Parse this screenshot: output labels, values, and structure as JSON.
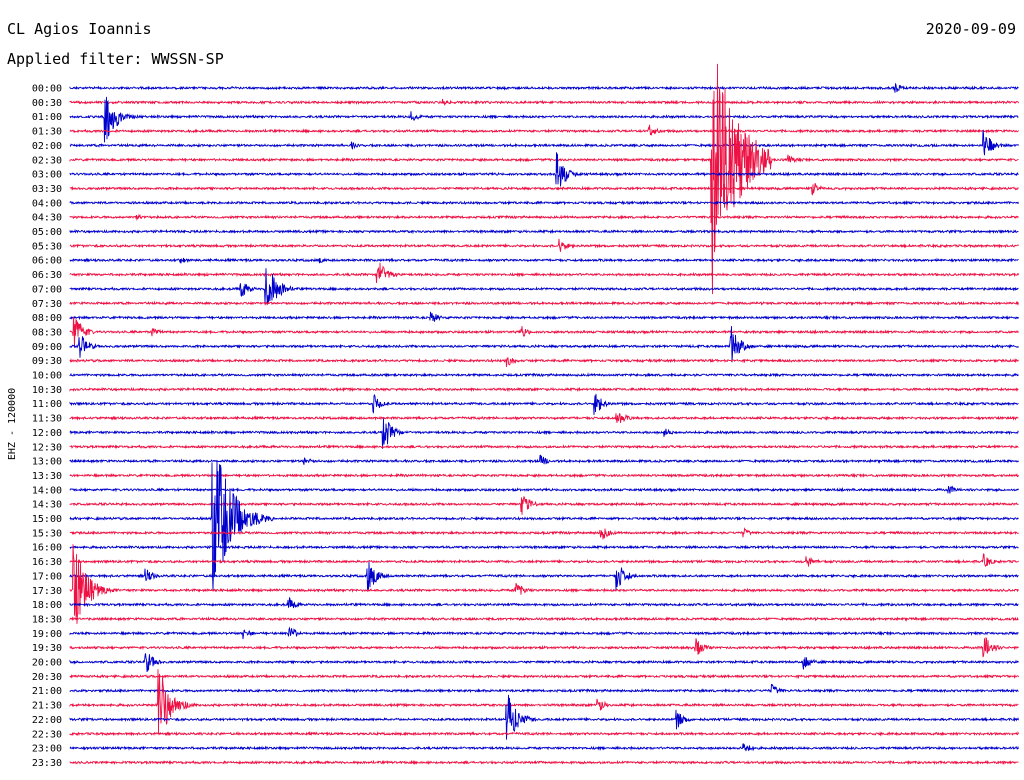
{
  "header": {
    "station": "CL Agios Ioannis",
    "filter": "Applied filter: WWSSN-SP",
    "date": "2020-09-09"
  },
  "chart_data": {
    "type": "line",
    "title": "CL Agios Ioannis",
    "subtitle": "Applied filter: WWSSN-SP",
    "date": "2020-09-09",
    "ylabel": "EHZ - 120000",
    "row_minutes": 30,
    "colors": {
      "even": "#0000cc",
      "odd": "#ee1144"
    },
    "rows": [
      "00:00",
      "00:30",
      "01:00",
      "01:30",
      "02:00",
      "02:30",
      "03:00",
      "03:30",
      "04:00",
      "04:30",
      "05:00",
      "05:30",
      "06:00",
      "06:30",
      "07:00",
      "07:30",
      "08:00",
      "08:30",
      "09:00",
      "09:30",
      "10:00",
      "10:30",
      "11:00",
      "11:30",
      "12:00",
      "12:30",
      "13:00",
      "13:30",
      "14:00",
      "14:30",
      "15:00",
      "15:30",
      "16:00",
      "16:30",
      "17:00",
      "17:30",
      "18:00",
      "18:30",
      "19:00",
      "19:30",
      "20:00",
      "20:30",
      "21:00",
      "21:30",
      "22:00",
      "22:30",
      "23:00",
      "23:30"
    ],
    "events": [
      {
        "row": 0,
        "minute": 26.1,
        "amp": 6
      },
      {
        "row": 1,
        "minute": 11.8,
        "amp": 4
      },
      {
        "row": 2,
        "minute": 1.1,
        "amp": 32
      },
      {
        "row": 2,
        "minute": 10.8,
        "amp": 6
      },
      {
        "row": 3,
        "minute": 18.3,
        "amp": 7
      },
      {
        "row": 4,
        "minute": 8.9,
        "amp": 4
      },
      {
        "row": 4,
        "minute": 28.9,
        "amp": 16
      },
      {
        "row": 5,
        "minute": 20.3,
        "amp": 140
      },
      {
        "row": 5,
        "minute": 22.7,
        "amp": 6
      },
      {
        "row": 6,
        "minute": 15.4,
        "amp": 22
      },
      {
        "row": 7,
        "minute": 23.5,
        "amp": 7
      },
      {
        "row": 9,
        "minute": 2.1,
        "amp": 4
      },
      {
        "row": 11,
        "minute": 15.5,
        "amp": 8
      },
      {
        "row": 12,
        "minute": 3.5,
        "amp": 4
      },
      {
        "row": 12,
        "minute": 7.9,
        "amp": 3
      },
      {
        "row": 13,
        "minute": 9.7,
        "amp": 18
      },
      {
        "row": 14,
        "minute": 6.2,
        "amp": 30
      },
      {
        "row": 14,
        "minute": 5.4,
        "amp": 10
      },
      {
        "row": 16,
        "minute": 11.4,
        "amp": 8
      },
      {
        "row": 17,
        "minute": 0.1,
        "amp": 20
      },
      {
        "row": 17,
        "minute": 2.6,
        "amp": 6
      },
      {
        "row": 17,
        "minute": 14.3,
        "amp": 6
      },
      {
        "row": 18,
        "minute": 0.3,
        "amp": 14
      },
      {
        "row": 18,
        "minute": 20.9,
        "amp": 22
      },
      {
        "row": 19,
        "minute": 13.8,
        "amp": 7
      },
      {
        "row": 22,
        "minute": 9.6,
        "amp": 10
      },
      {
        "row": 22,
        "minute": 16.6,
        "amp": 12
      },
      {
        "row": 23,
        "minute": 17.3,
        "amp": 10
      },
      {
        "row": 24,
        "minute": 9.9,
        "amp": 20
      },
      {
        "row": 24,
        "minute": 18.8,
        "amp": 5
      },
      {
        "row": 26,
        "minute": 7.4,
        "amp": 5
      },
      {
        "row": 26,
        "minute": 14.9,
        "amp": 6
      },
      {
        "row": 28,
        "minute": 27.8,
        "amp": 5
      },
      {
        "row": 29,
        "minute": 14.3,
        "amp": 12
      },
      {
        "row": 30,
        "minute": 4.5,
        "amp": 90
      },
      {
        "row": 31,
        "minute": 16.8,
        "amp": 9
      },
      {
        "row": 31,
        "minute": 21.3,
        "amp": 5
      },
      {
        "row": 33,
        "minute": 23.3,
        "amp": 8
      },
      {
        "row": 33,
        "minute": 28.9,
        "amp": 8
      },
      {
        "row": 34,
        "minute": 9.4,
        "amp": 18
      },
      {
        "row": 34,
        "minute": 17.3,
        "amp": 16
      },
      {
        "row": 34,
        "minute": 2.4,
        "amp": 8
      },
      {
        "row": 35,
        "minute": 0.1,
        "amp": 50
      },
      {
        "row": 35,
        "minute": 14.1,
        "amp": 10
      },
      {
        "row": 36,
        "minute": 6.9,
        "amp": 8
      },
      {
        "row": 38,
        "minute": 5.5,
        "amp": 6
      },
      {
        "row": 38,
        "minute": 6.9,
        "amp": 10
      },
      {
        "row": 39,
        "minute": 19.8,
        "amp": 10
      },
      {
        "row": 39,
        "minute": 28.9,
        "amp": 14
      },
      {
        "row": 40,
        "minute": 2.4,
        "amp": 12
      },
      {
        "row": 40,
        "minute": 23.2,
        "amp": 10
      },
      {
        "row": 42,
        "minute": 22.2,
        "amp": 7
      },
      {
        "row": 43,
        "minute": 2.8,
        "amp": 40
      },
      {
        "row": 43,
        "minute": 16.7,
        "amp": 8
      },
      {
        "row": 44,
        "minute": 13.8,
        "amp": 30
      },
      {
        "row": 44,
        "minute": 19.2,
        "amp": 10
      },
      {
        "row": 46,
        "minute": 21.3,
        "amp": 7
      }
    ]
  }
}
